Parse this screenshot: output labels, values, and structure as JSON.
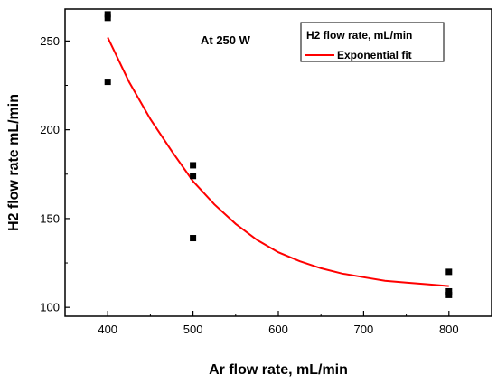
{
  "chart_data": {
    "type": "scatter",
    "title": "",
    "xlabel": "Ar flow rate, mL/min",
    "ylabel": "H2 flow rate mL/min",
    "xlim": [
      350,
      850
    ],
    "ylim": [
      95,
      268
    ],
    "x_ticks": [
      400,
      500,
      600,
      700,
      800
    ],
    "y_ticks": [
      100,
      150,
      200,
      250
    ],
    "grid": false,
    "legend_position": "top-right",
    "annotation": "At 250 W",
    "series": [
      {
        "name": "H2 flow rate, mL/min",
        "type": "scatter",
        "marker": "square",
        "color": "#000000",
        "points": [
          {
            "x": 400,
            "y": 265
          },
          {
            "x": 400,
            "y": 263
          },
          {
            "x": 400,
            "y": 227
          },
          {
            "x": 500,
            "y": 180
          },
          {
            "x": 500,
            "y": 174
          },
          {
            "x": 500,
            "y": 139
          },
          {
            "x": 800,
            "y": 120
          },
          {
            "x": 800,
            "y": 109
          },
          {
            "x": 800,
            "y": 107
          }
        ]
      },
      {
        "name": "Exponential fit",
        "type": "line",
        "color": "#ff0000",
        "points": [
          {
            "x": 400,
            "y": 252
          },
          {
            "x": 425,
            "y": 227
          },
          {
            "x": 450,
            "y": 206
          },
          {
            "x": 475,
            "y": 188
          },
          {
            "x": 500,
            "y": 171
          },
          {
            "x": 525,
            "y": 158
          },
          {
            "x": 550,
            "y": 147
          },
          {
            "x": 575,
            "y": 138
          },
          {
            "x": 600,
            "y": 131
          },
          {
            "x": 625,
            "y": 126
          },
          {
            "x": 650,
            "y": 122
          },
          {
            "x": 675,
            "y": 119
          },
          {
            "x": 700,
            "y": 117
          },
          {
            "x": 725,
            "y": 115
          },
          {
            "x": 750,
            "y": 114
          },
          {
            "x": 775,
            "y": 113
          },
          {
            "x": 800,
            "y": 112
          }
        ]
      }
    ]
  }
}
